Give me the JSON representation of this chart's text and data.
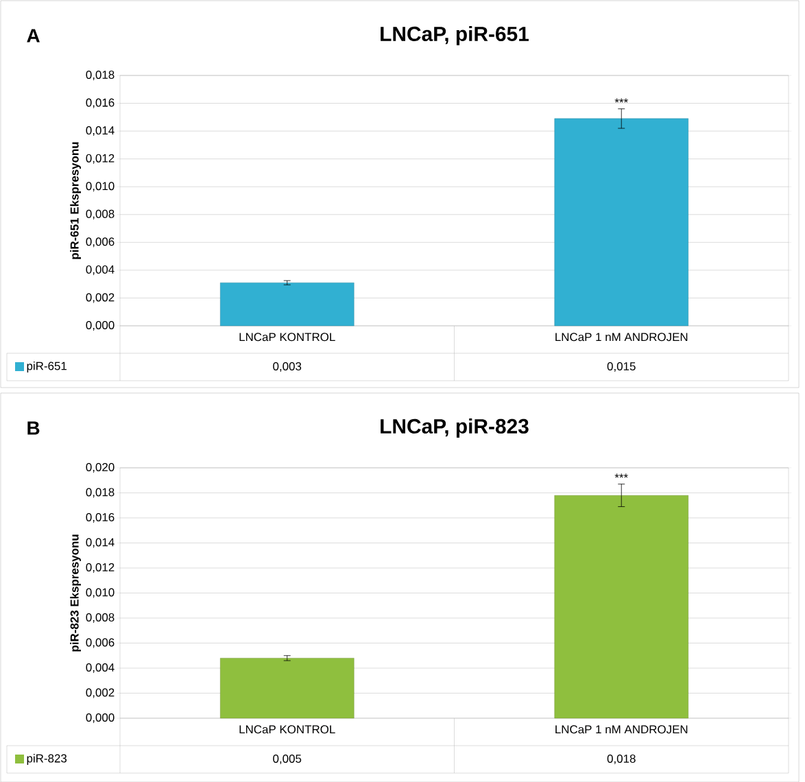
{
  "chart_data": [
    {
      "type": "bar",
      "title": "LNCaP, piR-651",
      "ylabel": "piR-651 Ekspresyonu",
      "categories": [
        "LNCaP KONTROL",
        "LNCaP 1 nM ANDROJEN"
      ],
      "series": [
        {
          "name": "piR-651",
          "color": "#31b0d2",
          "values": [
            0.0031,
            0.0149
          ],
          "errors": [
            0.00015,
            0.0007
          ],
          "value_labels": [
            "0,003",
            "0,015"
          ]
        }
      ],
      "ylim": [
        0,
        0.018
      ],
      "yticks": [
        {
          "value": 0,
          "label": "0,000"
        },
        {
          "value": 0.002,
          "label": "0,002"
        },
        {
          "value": 0.004,
          "label": "0,004"
        },
        {
          "value": 0.006,
          "label": "0,006"
        },
        {
          "value": 0.008,
          "label": "0,008"
        },
        {
          "value": 0.01,
          "label": "0,010"
        },
        {
          "value": 0.012,
          "label": "0,012"
        },
        {
          "value": 0.014,
          "label": "0,014"
        },
        {
          "value": 0.016,
          "label": "0,016"
        },
        {
          "value": 0.018,
          "label": "0,018"
        }
      ],
      "grid": "y",
      "legend": "bottom",
      "annotations": [
        "A",
        {
          "text": "***",
          "x": "LNCaP 1 nM ANDROJEN",
          "y": 0.0156
        }
      ]
    },
    {
      "type": "bar",
      "title": "LNCaP, piR-823",
      "ylabel": "piR-823 Ekspresyonu",
      "categories": [
        "LNCaP KONTROL",
        "LNCaP 1 nM ANDROJEN"
      ],
      "series": [
        {
          "name": "piR-823",
          "color": "#8fbf3e",
          "values": [
            0.0048,
            0.0178
          ],
          "errors": [
            0.0002,
            0.0009
          ],
          "value_labels": [
            "0,005",
            "0,018"
          ]
        }
      ],
      "ylim": [
        0,
        0.02
      ],
      "yticks": [
        {
          "value": 0,
          "label": "0,000"
        },
        {
          "value": 0.002,
          "label": "0,002"
        },
        {
          "value": 0.004,
          "label": "0,004"
        },
        {
          "value": 0.006,
          "label": "0,006"
        },
        {
          "value": 0.008,
          "label": "0,008"
        },
        {
          "value": 0.01,
          "label": "0,010"
        },
        {
          "value": 0.012,
          "label": "0,012"
        },
        {
          "value": 0.014,
          "label": "0,014"
        },
        {
          "value": 0.016,
          "label": "0,016"
        },
        {
          "value": 0.018,
          "label": "0,018"
        },
        {
          "value": 0.02,
          "label": "0,020"
        }
      ],
      "grid": "y",
      "legend": "bottom",
      "annotations": [
        "B",
        {
          "text": "***",
          "x": "LNCaP 1 nM ANDROJEN",
          "y": 0.0187
        }
      ]
    }
  ]
}
